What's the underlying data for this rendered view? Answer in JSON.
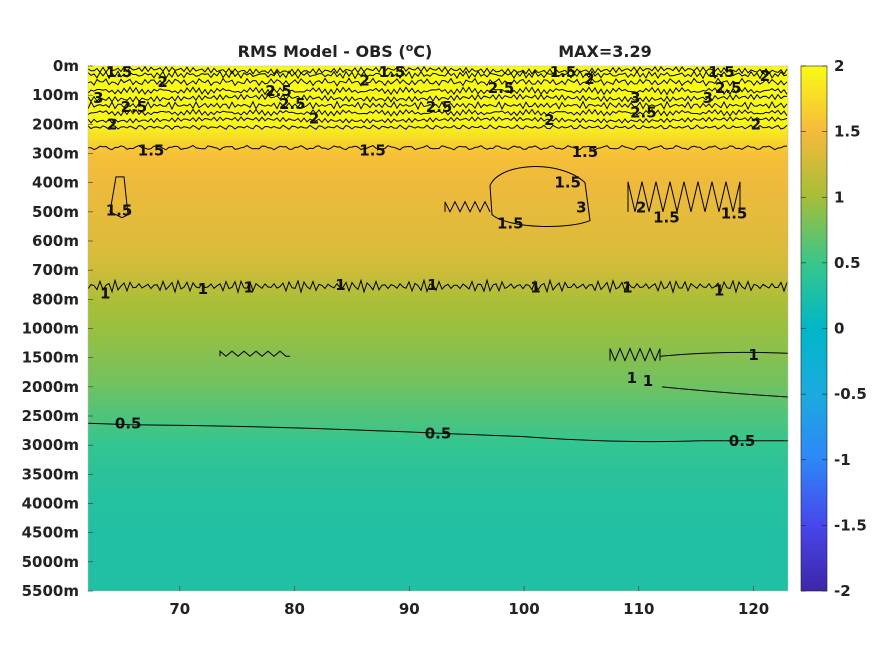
{
  "chart_data": {
    "type": "heatmap",
    "title": "RMS Model - OBS (",
    "title_sup": "o",
    "title_unit": "C)",
    "max_label": "MAX=3.29",
    "xlabel": "",
    "ylabel": "",
    "xlim": [
      62,
      123
    ],
    "x_ticks": [
      "70",
      "80",
      "90",
      "100",
      "110",
      "120"
    ],
    "y_ticks": [
      "0m",
      "100m",
      "200m",
      "300m",
      "400m",
      "500m",
      "600m",
      "700m",
      "800m",
      "1000m",
      "1500m",
      "2000m",
      "2500m",
      "3000m",
      "3500m",
      "4000m",
      "4500m",
      "5000m",
      "5500m"
    ],
    "colorbar": {
      "range": [
        -2,
        2
      ],
      "ticks": [
        "2",
        "1.5",
        "1",
        "0.5",
        "0",
        "-0.5",
        "-1",
        "-1.5",
        "-2"
      ],
      "colormap": "parula"
    },
    "depth_profile": [
      {
        "depth": "0m",
        "value": 2.0
      },
      {
        "depth": "100m",
        "value": 2.0
      },
      {
        "depth": "200m",
        "value": 1.95
      },
      {
        "depth": "300m",
        "value": 1.55
      },
      {
        "depth": "400m",
        "value": 1.45
      },
      {
        "depth": "500m",
        "value": 1.4
      },
      {
        "depth": "600m",
        "value": 1.35
      },
      {
        "depth": "700m",
        "value": 1.25
      },
      {
        "depth": "800m",
        "value": 1.05
      },
      {
        "depth": "1000m",
        "value": 0.95
      },
      {
        "depth": "1500m",
        "value": 0.85
      },
      {
        "depth": "2000m",
        "value": 0.75
      },
      {
        "depth": "2500m",
        "value": 0.6
      },
      {
        "depth": "3000m",
        "value": 0.45
      },
      {
        "depth": "3500m",
        "value": 0.38
      },
      {
        "depth": "4000m",
        "value": 0.32
      },
      {
        "depth": "4500m",
        "value": 0.3
      },
      {
        "depth": "5000m",
        "value": 0.3
      },
      {
        "depth": "5500m",
        "value": 0.3
      }
    ],
    "contour_labels": [
      {
        "text": "1.5",
        "x": 64.7,
        "depth": 0.2
      },
      {
        "text": "2",
        "x": 68.5,
        "depth": 0.55
      },
      {
        "text": "3",
        "x": 62.9,
        "depth": 1.1
      },
      {
        "text": "2.5",
        "x": 66.0,
        "depth": 1.4
      },
      {
        "text": "2",
        "x": 64.1,
        "depth": 2.0
      },
      {
        "text": "2.5",
        "x": 78.6,
        "depth": 0.85
      },
      {
        "text": "2.5",
        "x": 79.8,
        "depth": 1.3
      },
      {
        "text": "2",
        "x": 86.1,
        "depth": 0.5
      },
      {
        "text": "1.5",
        "x": 88.5,
        "depth": 0.2
      },
      {
        "text": "2",
        "x": 81.7,
        "depth": 1.8
      },
      {
        "text": "2.5",
        "x": 92.6,
        "depth": 1.4
      },
      {
        "text": "2.5",
        "x": 98.0,
        "depth": 0.75
      },
      {
        "text": "2",
        "x": 102.2,
        "depth": 1.85
      },
      {
        "text": "1.5",
        "x": 103.4,
        "depth": 0.2
      },
      {
        "text": "2",
        "x": 105.7,
        "depth": 0.45
      },
      {
        "text": "3",
        "x": 109.7,
        "depth": 1.1
      },
      {
        "text": "2.5",
        "x": 110.4,
        "depth": 1.6
      },
      {
        "text": "1.5",
        "x": 117.2,
        "depth": 0.2
      },
      {
        "text": "2",
        "x": 121.0,
        "depth": 0.35
      },
      {
        "text": "2.5",
        "x": 117.8,
        "depth": 0.75
      },
      {
        "text": "3",
        "x": 116.0,
        "depth": 1.1
      },
      {
        "text": "2",
        "x": 120.2,
        "depth": 2.0
      },
      {
        "text": "1.5",
        "x": 67.5,
        "depth": 2.9
      },
      {
        "text": "1.5",
        "x": 86.8,
        "depth": 2.9
      },
      {
        "text": "1.5",
        "x": 105.3,
        "depth": 2.95
      },
      {
        "text": "1.5",
        "x": 64.7,
        "depth": 4.95
      },
      {
        "text": "1.5",
        "x": 103.8,
        "depth": 4.0
      },
      {
        "text": "1.5",
        "x": 98.8,
        "depth": 5.4
      },
      {
        "text": "3",
        "x": 105.0,
        "depth": 4.85
      },
      {
        "text": "2",
        "x": 110.2,
        "depth": 4.85
      },
      {
        "text": "1.5",
        "x": 112.4,
        "depth": 5.2
      },
      {
        "text": "1.5",
        "x": 118.3,
        "depth": 5.05
      },
      {
        "text": "1",
        "x": 63.5,
        "depth": 7.8
      },
      {
        "text": "1",
        "x": 72.0,
        "depth": 7.65
      },
      {
        "text": "1",
        "x": 76.0,
        "depth": 7.6
      },
      {
        "text": "1",
        "x": 84.0,
        "depth": 7.5
      },
      {
        "text": "1",
        "x": 92.0,
        "depth": 7.5
      },
      {
        "text": "1",
        "x": 101.0,
        "depth": 7.6
      },
      {
        "text": "1",
        "x": 109.0,
        "depth": 7.6
      },
      {
        "text": "1",
        "x": 117.0,
        "depth": 7.7
      },
      {
        "text": "1",
        "x": 120.0,
        "depth": 9.9
      },
      {
        "text": "1",
        "x": 110.8,
        "depth": 10.8
      },
      {
        "text": "1",
        "x": 109.4,
        "depth": 10.7
      },
      {
        "text": "0.5",
        "x": 65.5,
        "depth": 12.25
      },
      {
        "text": "0.5",
        "x": 92.5,
        "depth": 12.6
      },
      {
        "text": "0.5",
        "x": 119.0,
        "depth": 12.85
      }
    ]
  }
}
